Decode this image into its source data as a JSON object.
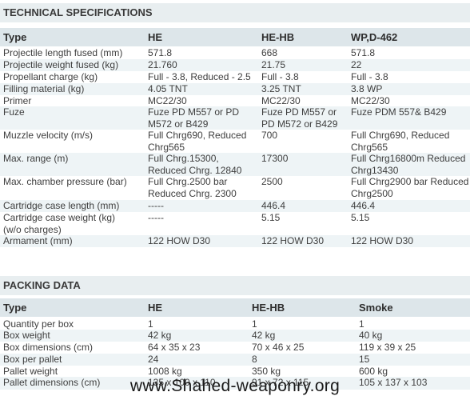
{
  "tech": {
    "title": "TECHNICAL SPECIFICATIONS",
    "headers": [
      "Type",
      "HE",
      "HE-HB",
      "WP,D-462"
    ],
    "rows": [
      [
        "Projectile length fused (mm)",
        "571.8",
        "668",
        "571.8"
      ],
      [
        "Projectile weight fused (kg)",
        "21.760",
        "21.75",
        "22"
      ],
      [
        "Propellant charge (kg)",
        "Full - 3.8, Reduced - 2.5",
        "Full - 3.8",
        "Full - 3.8"
      ],
      [
        "Filling material (kg)",
        "4.05 TNT",
        "3.25 TNT",
        "3.8 WP"
      ],
      [
        "Primer",
        "MC22/30",
        "MC22/30",
        "MC22/30"
      ],
      [
        "Fuze",
        "Fuze PD M557 or PD\nM572 or B429",
        "Fuze PD M557 or\nPD M572 or B429",
        "Fuze PDM 557& B429"
      ],
      [
        "Muzzle velocity (m/s)",
        "Full Chrg690, Reduced\nChrg565",
        "700",
        "Full Chrg690, Reduced\nChrg565"
      ],
      [
        "Max. range (m)",
        "Full Chrg.15300,\nReduced Chrg. 12840",
        "17300",
        "Full Chrg16800m Reduced\nChrg13430"
      ],
      [
        "Max. chamber pressure (bar)",
        "Full Chrg.2500 bar\nReduced Chrg. 2300",
        "2500",
        "Full Chrg2900 bar Reduced\nChrg2500"
      ],
      [
        "Cartridge case length (mm)",
        "-----",
        "446.4",
        "446.4"
      ],
      [
        "Cartridge case weight (kg)\n(w/o charges)",
        "-----",
        "5.15",
        "5.15"
      ],
      [
        "Armament (mm)",
        "122 HOW D30",
        "122 HOW D30",
        "122 HOW D30"
      ]
    ]
  },
  "packing": {
    "title": "PACKING DATA",
    "headers": [
      "Type",
      "HE",
      "HE-HB",
      "Smoke"
    ],
    "rows": [
      [
        "Quantity per box",
        "1",
        "1",
        "1"
      ],
      [
        "Box weight",
        "42 kg",
        "42 kg",
        "40 kg"
      ],
      [
        "Box dimensions (cm)",
        "64 x 35 x 23",
        "70 x 46 x 25",
        "119 x 39 x 25"
      ],
      [
        "Box per pallet",
        "24",
        "8",
        "15"
      ],
      [
        "Pallet weight",
        "1008 kg",
        "350 kg",
        "600 kg"
      ],
      [
        "Pallet dimensions (cm)",
        "135 x 100 x 110",
        "91 x 72 x 115",
        "105 x 137 x 103"
      ]
    ]
  },
  "watermark": "www.Shahed-weaponry.org"
}
